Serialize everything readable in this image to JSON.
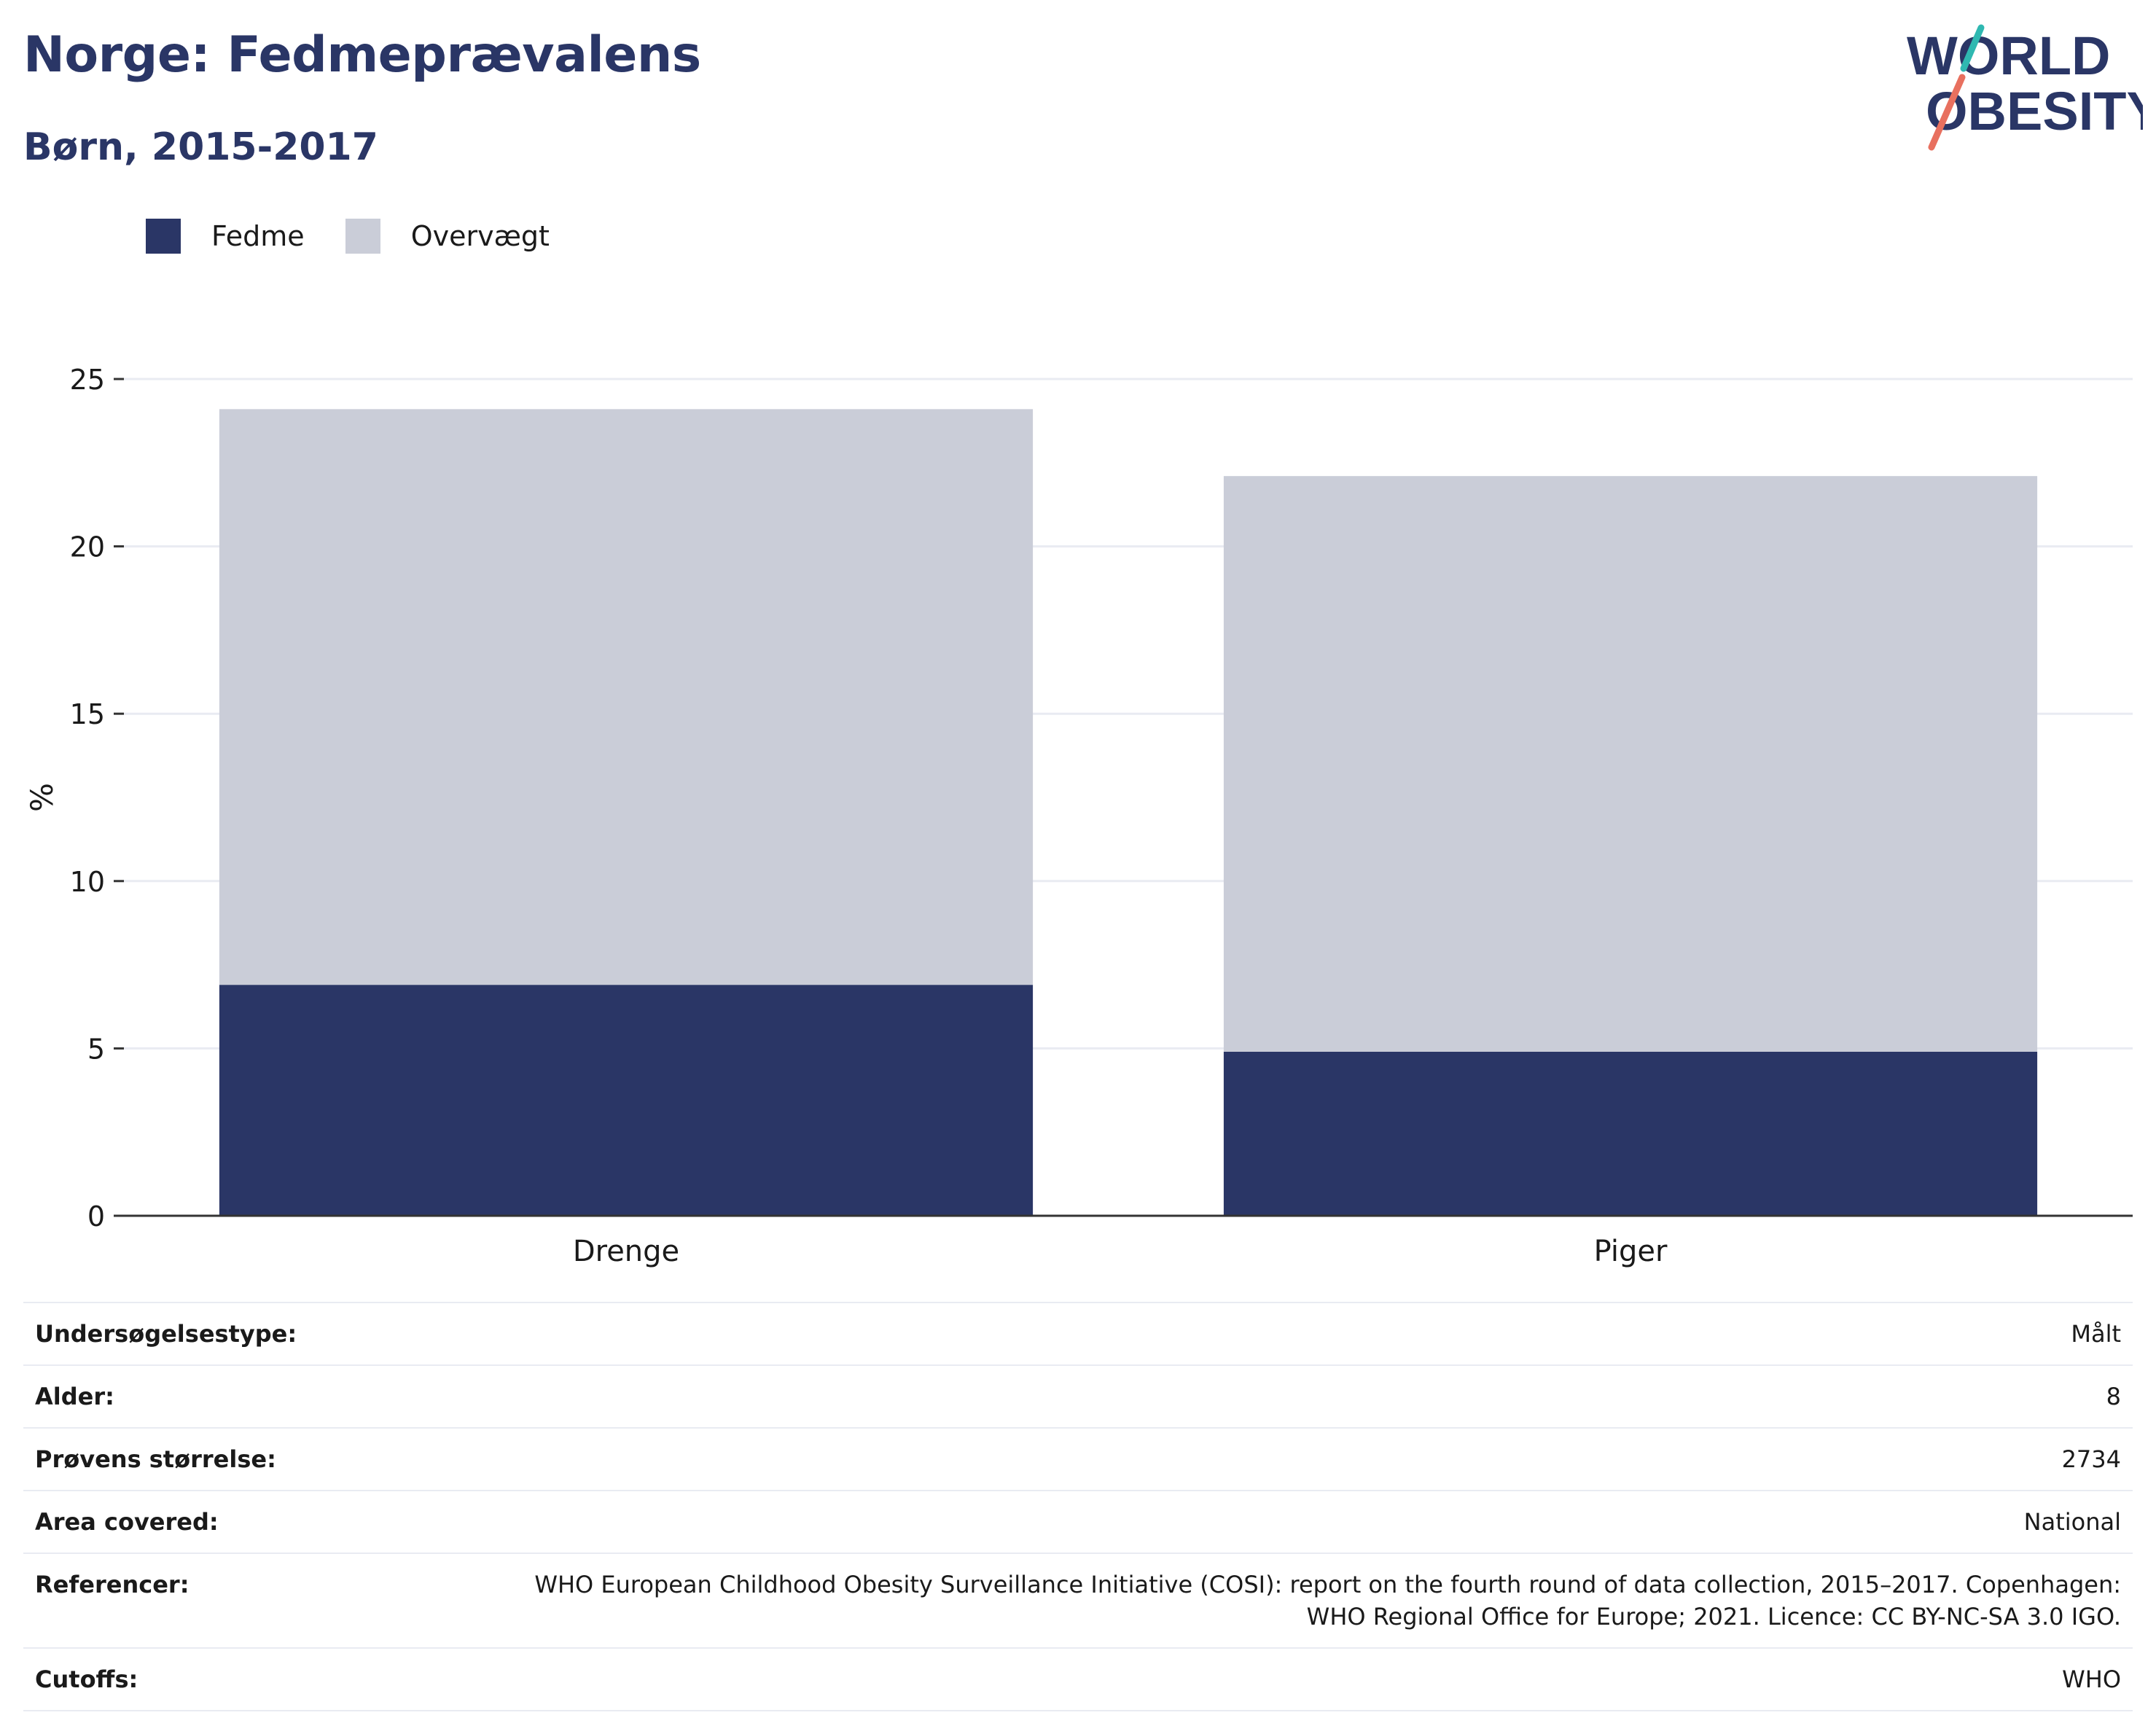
{
  "header": {
    "title": "Norge: Fedmeprævalens",
    "subtitle": "Børn, 2015-2017",
    "logo_text_line1": "WORLD",
    "logo_text_line2": "OBESITY"
  },
  "colors": {
    "fedme": "#2a3666",
    "overvaegt": "#cacdd8",
    "text_dark": "#2a3666",
    "accent_teal": "#2fb8b1",
    "accent_coral": "#e8705f",
    "grid": "#e9ebf2",
    "axis": "#333333"
  },
  "legend": {
    "items": [
      {
        "label": "Fedme",
        "color": "#2a3666"
      },
      {
        "label": "Overvægt",
        "color": "#cacdd8"
      }
    ],
    "placement": "top-left"
  },
  "chart_data": {
    "type": "bar",
    "stacked": true,
    "categories": [
      "Drenge",
      "Piger"
    ],
    "series": [
      {
        "name": "Fedme",
        "values": [
          6.9,
          4.9
        ],
        "color": "#2a3666"
      },
      {
        "name": "Overvægt",
        "values": [
          17.2,
          17.2
        ],
        "color": "#cacdd8"
      }
    ],
    "ylabel": "%",
    "xlabel": "",
    "ylim": [
      0,
      25
    ],
    "yticks": [
      0,
      5,
      10,
      15,
      20,
      25
    ],
    "grid": true
  },
  "info_table": {
    "rows": [
      {
        "label": "Undersøgelsestype:",
        "value": [
          "Målt"
        ]
      },
      {
        "label": "Alder:",
        "value": [
          "8"
        ]
      },
      {
        "label": "Prøvens størrelse:",
        "value": [
          "2734"
        ]
      },
      {
        "label": "Area covered:",
        "value": [
          "National"
        ]
      },
      {
        "label": "Referencer:",
        "value": [
          "WHO European Childhood Obesity Surveillance Initiative (COSI): report on the fourth round of data collection, 2015–2017. Copenhagen:",
          "WHO Regional Office for Europe; 2021. Licence: CC BY-NC-SA 3.0 IGO."
        ]
      },
      {
        "label": "Cutoffs:",
        "value": [
          "WHO"
        ]
      }
    ]
  }
}
